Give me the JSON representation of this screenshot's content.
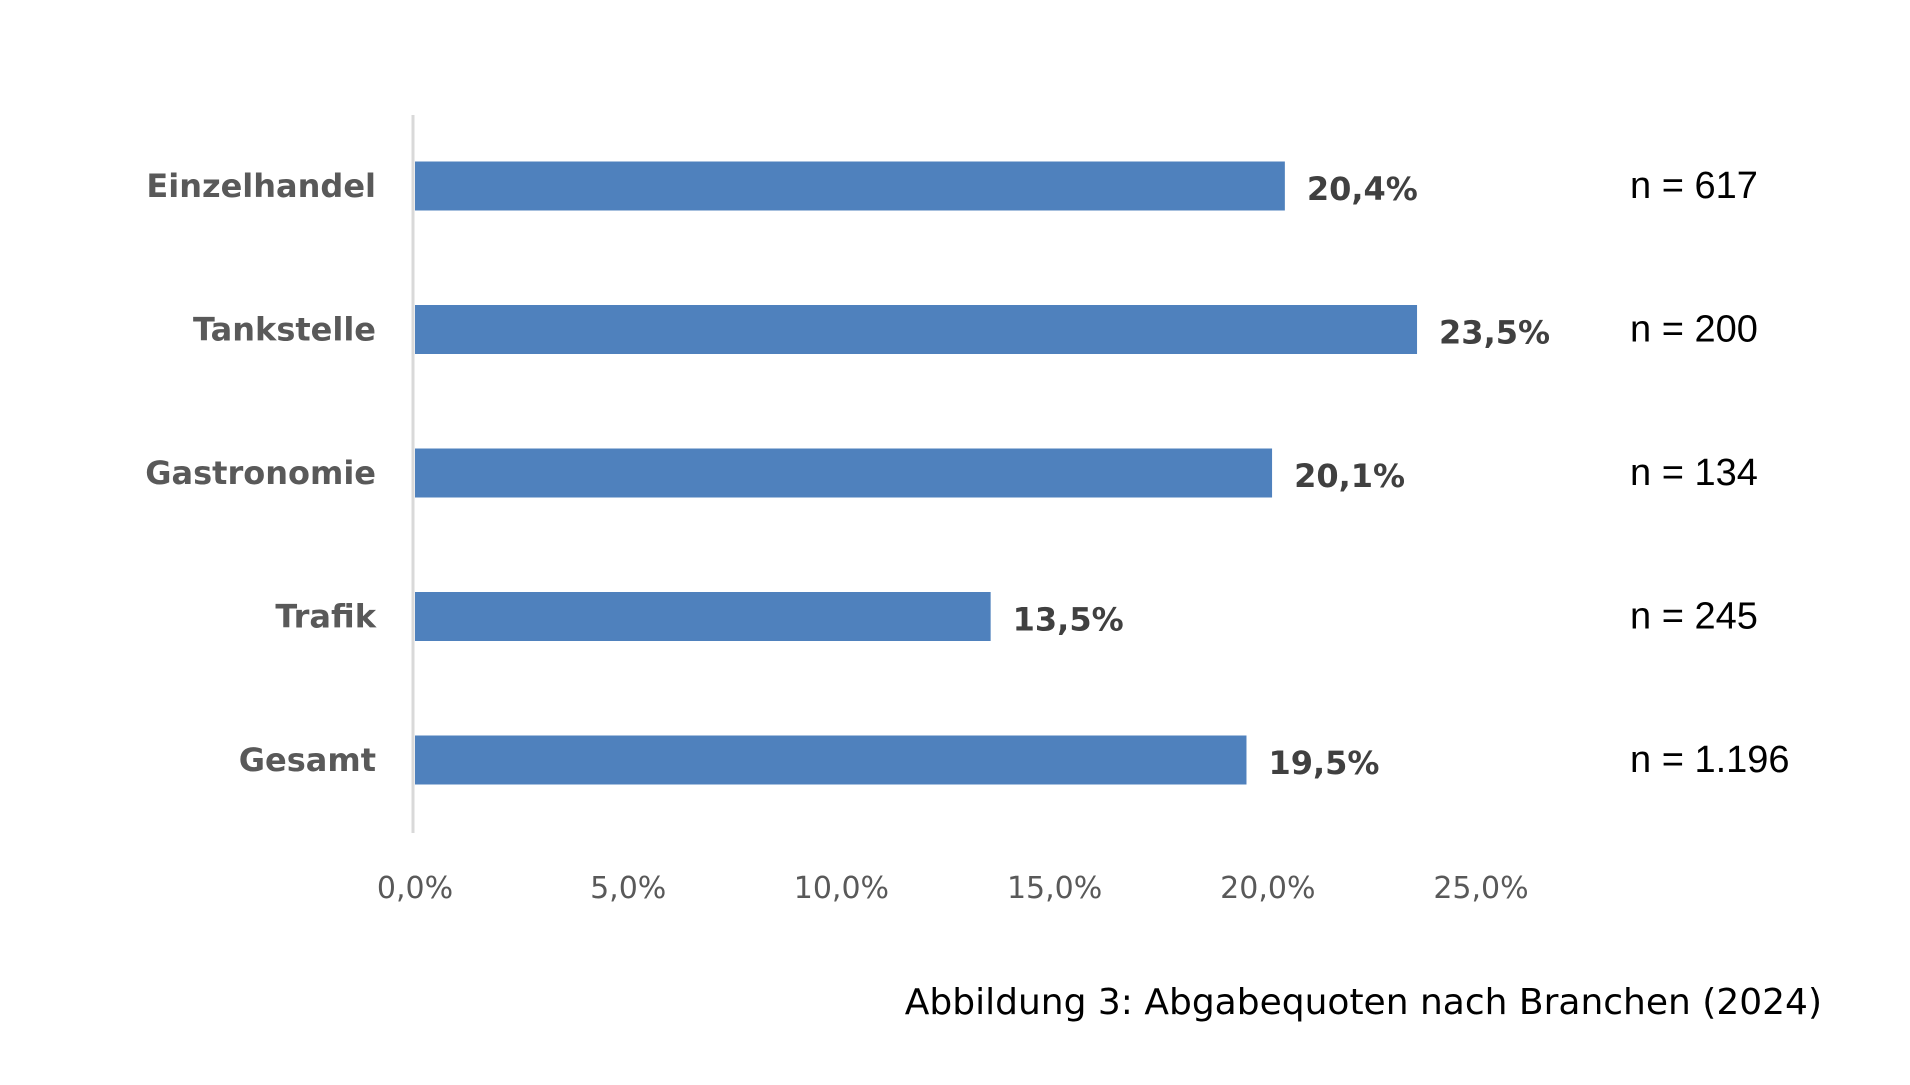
{
  "chart_data": {
    "type": "bar",
    "orientation": "horizontal",
    "categories": [
      "Einzelhandel",
      "Tankstelle",
      "Gastronomie",
      "Trafik",
      "Gesamt"
    ],
    "values": [
      20.4,
      23.5,
      20.1,
      13.5,
      19.5
    ],
    "value_labels": [
      "20,4%",
      "23,5%",
      "20,1%",
      "13,5%",
      "19,5%"
    ],
    "sample_sizes": [
      "n = 617",
      "n = 200",
      "n = 134",
      "n = 245",
      "n = 1.196"
    ],
    "xlim": [
      0,
      25
    ],
    "x_ticks": [
      0,
      5,
      10,
      15,
      20,
      25
    ],
    "x_tick_labels": [
      "0,0%",
      "5,0%",
      "10,0%",
      "15,0%",
      "20,0%",
      "25,0%"
    ],
    "caption": "Abbildung 3: Abgabequoten nach Branchen (2024)",
    "bar_color": "#4f81bd",
    "grid": false,
    "legend": "none"
  }
}
